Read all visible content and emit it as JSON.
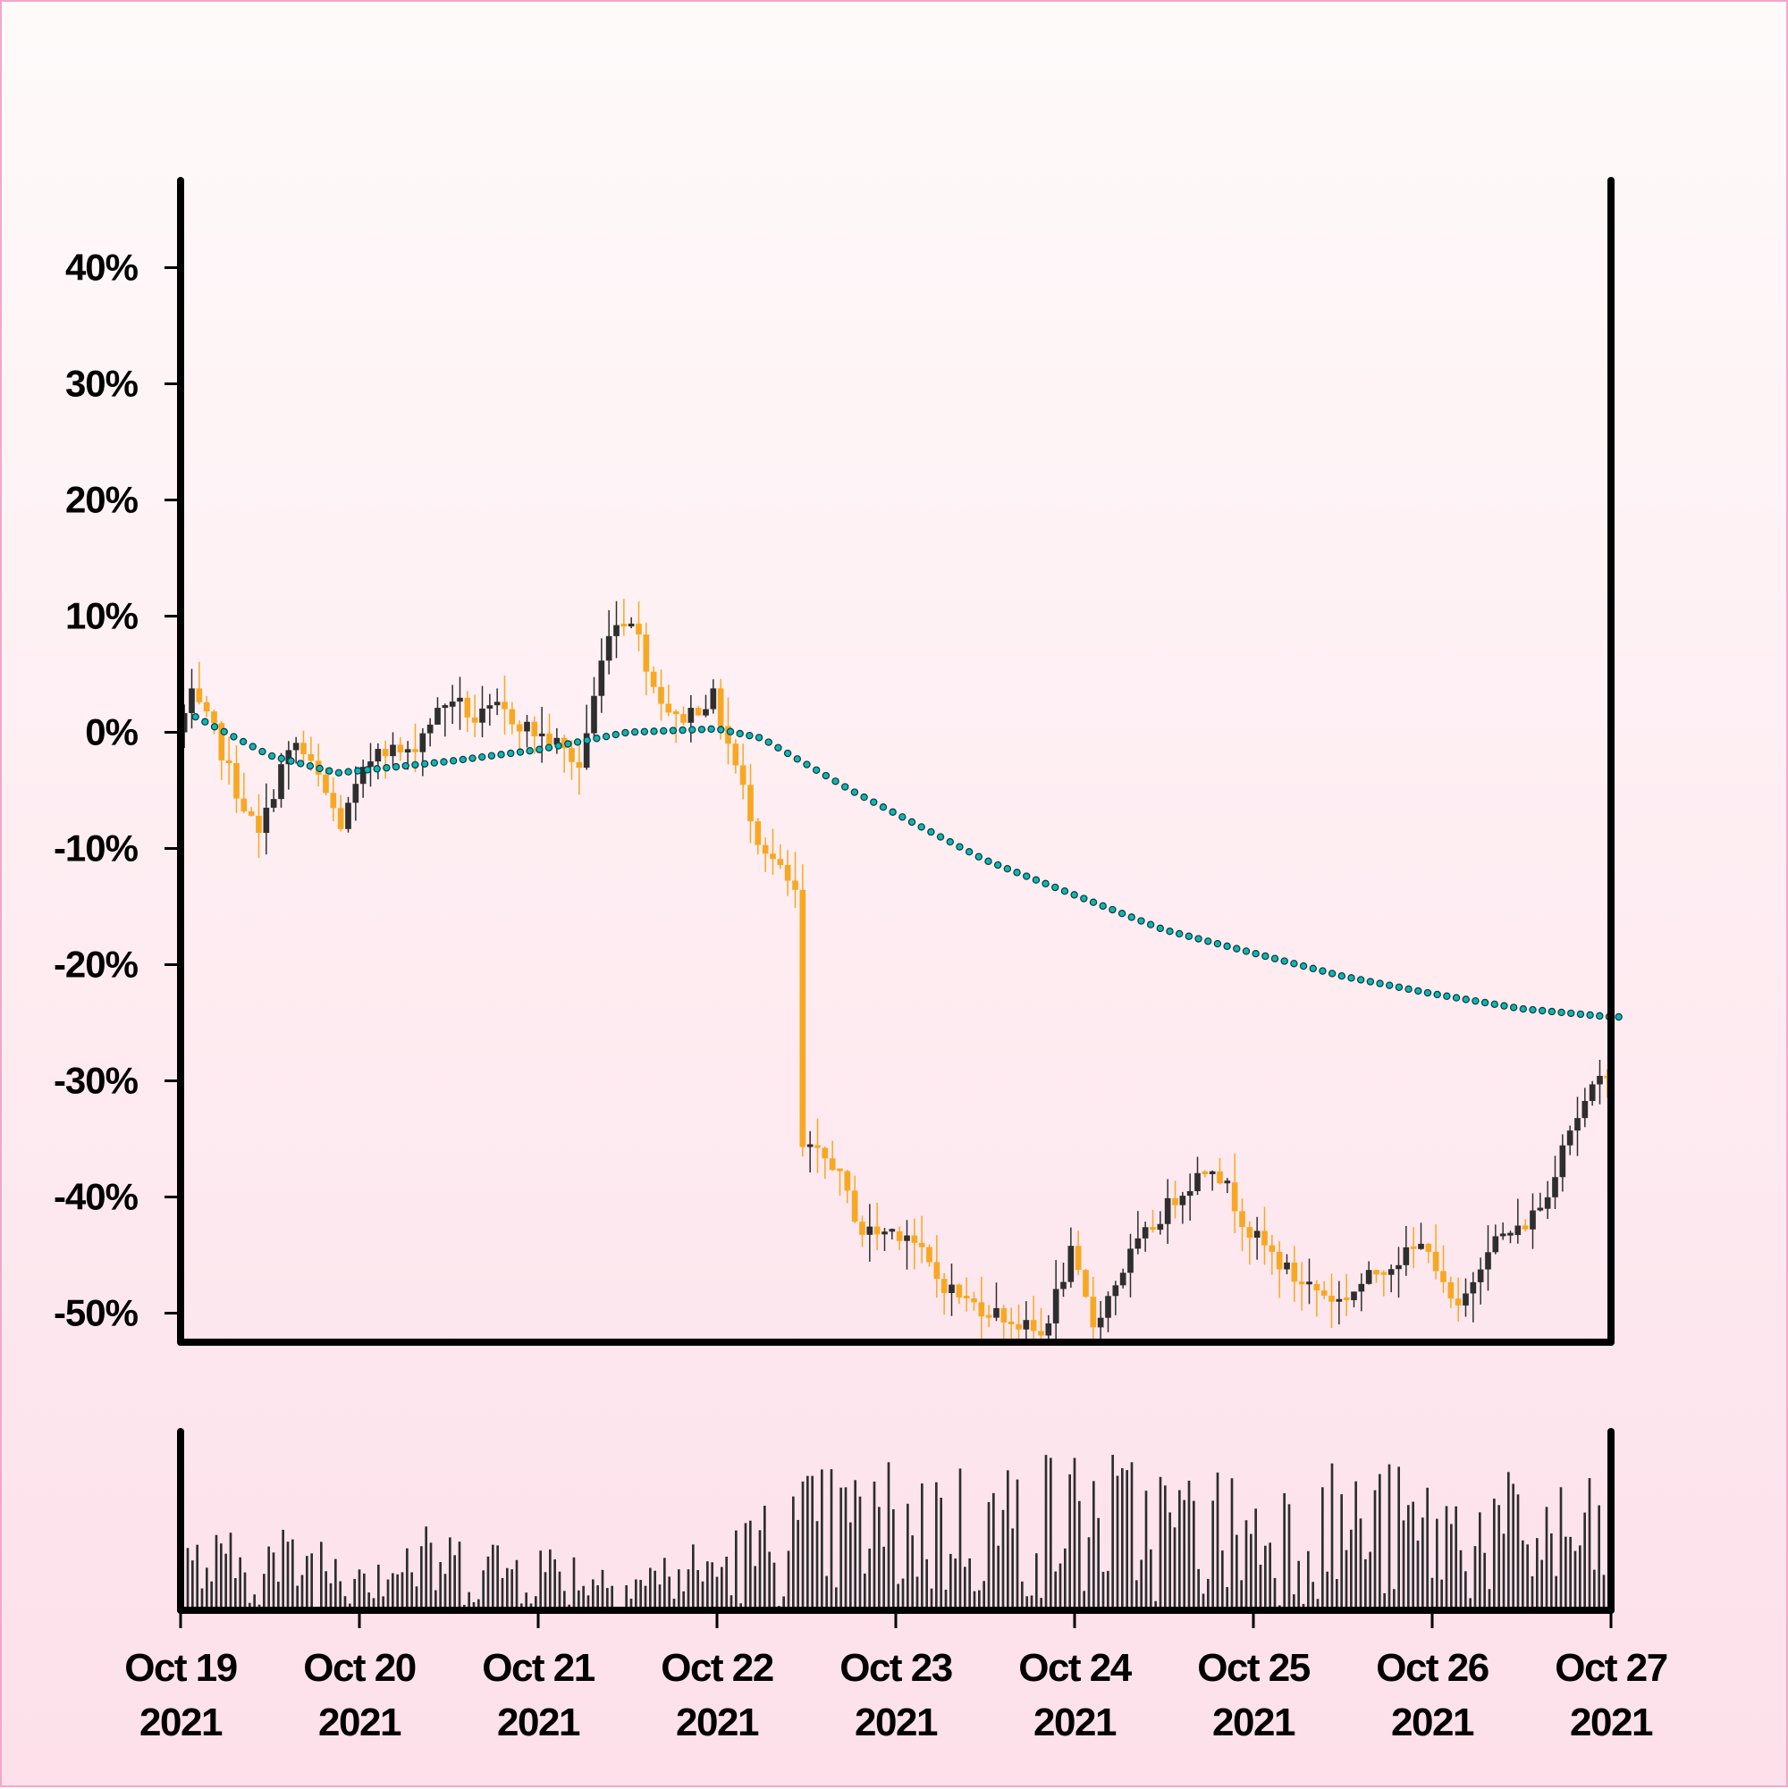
{
  "colors": {
    "up": "#2e2e2e",
    "down": "#f7a823",
    "ma": "#0fb5b5",
    "volume": "#2e2e2e",
    "axis": "#000000"
  },
  "chart_data": [
    {
      "type": "candlestick",
      "title": "",
      "xlabel": "",
      "ylabel": "",
      "ylim": [
        -52.5,
        47.5
      ],
      "y_ticks": [
        40,
        30,
        20,
        10,
        0,
        -10,
        -20,
        -30,
        -40,
        -50
      ],
      "y_tick_labels": [
        "40%",
        "30%",
        "20%",
        "10%",
        "0%",
        "-10%",
        "-20%",
        "-30%",
        "-40%",
        "-50%"
      ],
      "x_range": [
        "2021-10-19",
        "2021-10-27"
      ],
      "x_ticks": [
        "2021-10-19",
        "2021-10-20",
        "2021-10-21",
        "2021-10-22",
        "2021-10-23",
        "2021-10-24",
        "2021-10-25",
        "2021-10-26",
        "2021-10-27"
      ],
      "x_tick_labels": [
        [
          "Oct 19",
          "2021"
        ],
        [
          "Oct 20",
          "2021"
        ],
        [
          "Oct 21",
          "2021"
        ],
        [
          "Oct 22",
          "2021"
        ],
        [
          "Oct 23",
          "2021"
        ],
        [
          "Oct 24",
          "2021"
        ],
        [
          "Oct 25",
          "2021"
        ],
        [
          "Oct 26",
          "2021"
        ],
        [
          "Oct 27",
          "2021"
        ]
      ],
      "grid": false,
      "price_path": [
        [
          "2021-10-19 00:00",
          0
        ],
        [
          "2021-10-19 02:00",
          3
        ],
        [
          "2021-10-19 05:00",
          0
        ],
        [
          "2021-10-19 08:00",
          -5
        ],
        [
          "2021-10-19 11:00",
          -9
        ],
        [
          "2021-10-19 14:00",
          -3
        ],
        [
          "2021-10-19 16:00",
          -1
        ],
        [
          "2021-10-19 19:00",
          -4
        ],
        [
          "2021-10-19 22:00",
          -8
        ],
        [
          "2021-10-20 00:00",
          -5
        ],
        [
          "2021-10-20 03:00",
          -1
        ],
        [
          "2021-10-20 07:00",
          -2
        ],
        [
          "2021-10-20 10:00",
          1
        ],
        [
          "2021-10-20 13:00",
          3
        ],
        [
          "2021-10-20 16:00",
          1
        ],
        [
          "2021-10-20 19:00",
          2
        ],
        [
          "2021-10-21 00:00",
          0
        ],
        [
          "2021-10-21 03:00",
          -1
        ],
        [
          "2021-10-21 06:00",
          -3
        ],
        [
          "2021-10-21 08:00",
          3
        ],
        [
          "2021-10-21 10:00",
          9
        ],
        [
          "2021-10-21 13:00",
          10
        ],
        [
          "2021-10-21 16:00",
          4
        ],
        [
          "2021-10-21 19:00",
          1
        ],
        [
          "2021-10-22 00:00",
          3
        ],
        [
          "2021-10-22 03:00",
          -3
        ],
        [
          "2021-10-22 06:00",
          -9
        ],
        [
          "2021-10-22 09:00",
          -12
        ],
        [
          "2021-10-22 11:00",
          -14
        ],
        [
          "2021-10-22 12:00",
          -36
        ],
        [
          "2021-10-22 16:00",
          -37
        ],
        [
          "2021-10-22 20:00",
          -43
        ],
        [
          "2021-10-23 02:00",
          -43
        ],
        [
          "2021-10-23 06:00",
          -47
        ],
        [
          "2021-10-23 10:00",
          -49
        ],
        [
          "2021-10-23 14:00",
          -50
        ],
        [
          "2021-10-23 20:00",
          -52
        ],
        [
          "2021-10-24 00:00",
          -45
        ],
        [
          "2021-10-24 03:00",
          -51
        ],
        [
          "2021-10-24 08:00",
          -45
        ],
        [
          "2021-10-24 14:00",
          -40
        ],
        [
          "2021-10-24 19:00",
          -37
        ],
        [
          "2021-10-25 00:00",
          -43
        ],
        [
          "2021-10-25 06:00",
          -47
        ],
        [
          "2021-10-25 12:00",
          -49
        ],
        [
          "2021-10-25 18:00",
          -46
        ],
        [
          "2021-10-26 00:00",
          -44
        ],
        [
          "2021-10-26 02:00",
          -48
        ],
        [
          "2021-10-26 04:00",
          -50
        ],
        [
          "2021-10-26 08:00",
          -44
        ],
        [
          "2021-10-26 12:00",
          -43
        ],
        [
          "2021-10-26 16:00",
          -40
        ],
        [
          "2021-10-26 18:00",
          -35
        ],
        [
          "2021-10-26 21:00",
          -32
        ],
        [
          "2021-10-27 00:00",
          -29
        ]
      ],
      "moving_average": [
        [
          "2021-10-19 00:00",
          2
        ],
        [
          "2021-10-19 12:00",
          -2
        ],
        [
          "2021-10-19 21:00",
          -3.5
        ],
        [
          "2021-10-20 12:00",
          -2.5
        ],
        [
          "2021-10-21 00:00",
          -1.5
        ],
        [
          "2021-10-21 12:00",
          0
        ],
        [
          "2021-10-22 00:00",
          0.3
        ],
        [
          "2021-10-22 06:00",
          -0.5
        ],
        [
          "2021-10-22 18:00",
          -5
        ],
        [
          "2021-10-23 12:00",
          -11
        ],
        [
          "2021-10-24 00:00",
          -14
        ],
        [
          "2021-10-24 12:00",
          -17
        ],
        [
          "2021-10-25 00:00",
          -19
        ],
        [
          "2021-10-25 12:00",
          -21
        ],
        [
          "2021-10-26 00:00",
          -22.5
        ],
        [
          "2021-10-26 12:00",
          -23.8
        ],
        [
          "2021-10-27 00:00",
          -24.5
        ]
      ]
    },
    {
      "type": "bar",
      "title": "",
      "xlabel": "",
      "ylabel": "",
      "x_range": [
        "2021-10-19",
        "2021-10-27"
      ],
      "volume_profile": [
        [
          "2021-10-19",
          0.3
        ],
        [
          "2021-10-20",
          0.35
        ],
        [
          "2021-10-21",
          0.3
        ],
        [
          "2021-10-21 12:00",
          0.2
        ],
        [
          "2021-10-22",
          0.3
        ],
        [
          "2021-10-22 12:00",
          0.55
        ],
        [
          "2021-10-23",
          0.6
        ],
        [
          "2021-10-23 12:00",
          0.6
        ],
        [
          "2021-10-24",
          0.65
        ],
        [
          "2021-10-25",
          0.55
        ],
        [
          "2021-10-25 12:00",
          0.6
        ],
        [
          "2021-10-26",
          0.55
        ],
        [
          "2021-10-27",
          0.5
        ]
      ]
    }
  ]
}
